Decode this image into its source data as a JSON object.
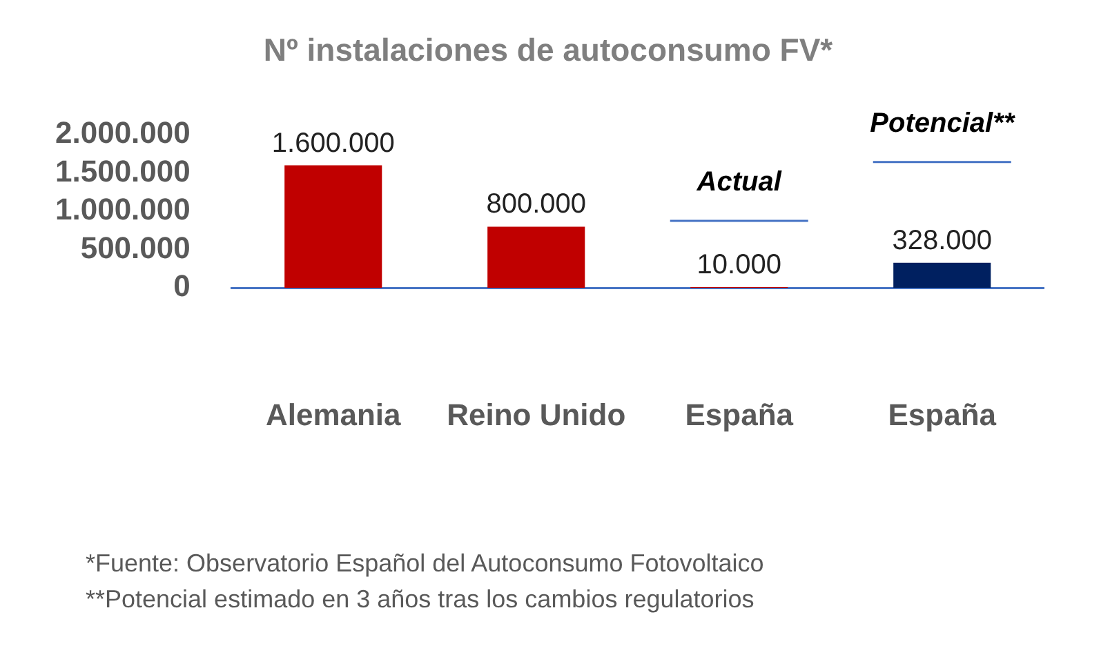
{
  "chart_data": {
    "type": "bar",
    "title": "Nº instalaciones de autoconsumo FV*",
    "categories": [
      "Alemania",
      "Reino Unido",
      "España",
      "España"
    ],
    "values": [
      1600000,
      800000,
      10000,
      328000
    ],
    "colors": [
      "#c00000",
      "#c00000",
      "#c00000",
      "#002060"
    ],
    "value_labels": [
      "1.600.000",
      "800.000",
      "10.000",
      "328.000"
    ],
    "ylim": [
      0,
      2000000
    ],
    "yticks": [
      {
        "value": 0,
        "label": "0"
      },
      {
        "value": 500000,
        "label": "500.000"
      },
      {
        "value": 1000000,
        "label": "1.000.000"
      },
      {
        "value": 1500000,
        "label": "1.500.000"
      },
      {
        "value": 2000000,
        "label": "2.000.000"
      }
    ],
    "grid": false,
    "legend": false,
    "annotations": [
      "Actual",
      "Potencial**",
      "*Fuente: Observatorio Español del Autoconsumo Fotovoltaico",
      "**Potencial estimado en 3 años tras los cambios regulatorios"
    ]
  }
}
